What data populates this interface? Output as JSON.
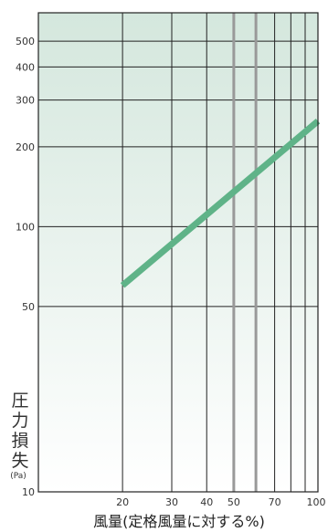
{
  "chart_data": {
    "type": "line",
    "x_scale": "log",
    "y_scale": "log",
    "xlim": [
      10,
      100
    ],
    "ylim": [
      10,
      640
    ],
    "x_ticks": [
      {
        "value": 20,
        "label": "20"
      },
      {
        "value": 30,
        "label": "30"
      },
      {
        "value": 40,
        "label": "40"
      },
      {
        "value": 50,
        "label": "50"
      },
      {
        "value": 70,
        "label": "70"
      },
      {
        "value": 100,
        "label": "100"
      }
    ],
    "x_grid": [
      20,
      30,
      40,
      50,
      60,
      70,
      80,
      90,
      100
    ],
    "x_grid_emphasized": [
      50,
      60
    ],
    "y_ticks": [
      {
        "value": 10,
        "label": "10"
      },
      {
        "value": 50,
        "label": "50"
      },
      {
        "value": 100,
        "label": "100"
      },
      {
        "value": 200,
        "label": "200"
      },
      {
        "value": 300,
        "label": "300"
      },
      {
        "value": 400,
        "label": "400"
      },
      {
        "value": 500,
        "label": "500"
      }
    ],
    "y_grid": [
      50,
      100,
      200,
      300,
      400,
      500
    ],
    "xlabel": "風量(定格風量に対する%)",
    "ylabel": "圧力損失",
    "ylabel_unit": "(Pa)",
    "series": [
      {
        "x": [
          20,
          100
        ],
        "y": [
          60,
          250
        ],
        "color": "#5fb388"
      }
    ],
    "background_gradient": [
      "#d4e7dd",
      "#ffffff"
    ],
    "grid_color": "#222222",
    "emphasized_grid_color": "#999999"
  }
}
